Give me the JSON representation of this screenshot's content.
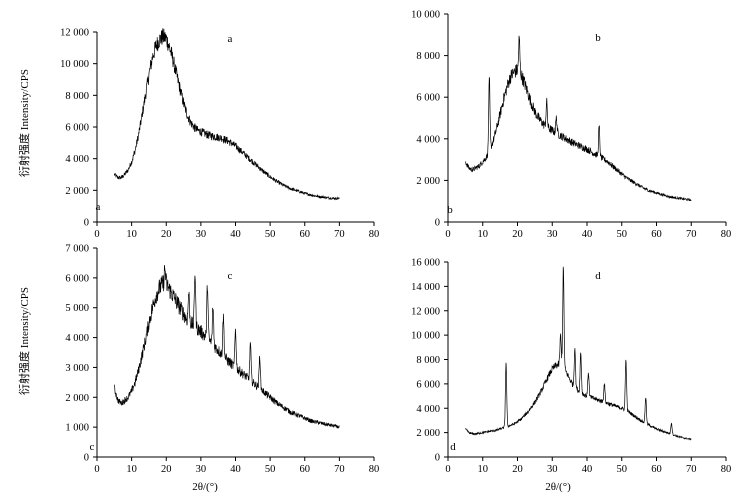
{
  "y_axis_label": "衍射强度 Intensity/CPS",
  "x_axis_label": "2θ/(°)",
  "chart_data": [
    {
      "type": "line",
      "panel_letter": "a",
      "corner_letter": "a",
      "xlim": [
        0,
        80
      ],
      "ylim": [
        0,
        12000
      ],
      "xticks": [
        0,
        10,
        20,
        30,
        40,
        50,
        60,
        70,
        80
      ],
      "xtick_labels": [
        "0",
        "10",
        "20",
        "30",
        "40",
        "50",
        "60",
        "70",
        "80"
      ],
      "yticks": [
        0,
        2000,
        4000,
        6000,
        8000,
        10000,
        12000
      ],
      "ytick_labels": [
        "0",
        "2 000",
        "4 000",
        "6 000",
        "8 000",
        "10 000",
        "12 000"
      ],
      "x": [
        5,
        6,
        7,
        8,
        9,
        10,
        11,
        12,
        13,
        14,
        15,
        16,
        17,
        18,
        19,
        20,
        21,
        22,
        23,
        24,
        25,
        26,
        27,
        28,
        29,
        30,
        32,
        34,
        36,
        38,
        40,
        42,
        44,
        46,
        48,
        50,
        52,
        54,
        56,
        58,
        60,
        62,
        64,
        66,
        68,
        70
      ],
      "y": [
        3000,
        2800,
        2800,
        3000,
        3300,
        3800,
        4500,
        5500,
        6700,
        8000,
        9300,
        10400,
        11100,
        11500,
        11700,
        11600,
        11000,
        10200,
        9300,
        8400,
        7500,
        6800,
        6300,
        6000,
        5800,
        5700,
        5500,
        5400,
        5300,
        5100,
        4800,
        4400,
        4000,
        3600,
        3200,
        2850,
        2550,
        2300,
        2100,
        1950,
        1800,
        1700,
        1600,
        1550,
        1500,
        1480
      ],
      "noise": 0.06
    },
    {
      "type": "line",
      "panel_letter": "b",
      "corner_letter": "b",
      "xlim": [
        0,
        80
      ],
      "ylim": [
        0,
        10000
      ],
      "xticks": [
        0,
        10,
        20,
        30,
        40,
        50,
        60,
        70,
        80
      ],
      "xtick_labels": [
        "0",
        "10",
        "20",
        "30",
        "40",
        "50",
        "60",
        "70",
        "80"
      ],
      "yticks": [
        0,
        2000,
        4000,
        6000,
        8000,
        10000
      ],
      "ytick_labels": [
        "0",
        "2 000",
        "4 000",
        "6 000",
        "8 000",
        "10 000"
      ],
      "x": [
        5,
        6,
        7,
        8,
        9,
        10,
        11,
        12,
        13,
        14,
        15,
        16,
        17,
        18,
        19,
        20,
        21,
        22,
        23,
        24,
        25,
        26,
        27,
        28,
        29,
        30,
        32,
        34,
        36,
        38,
        40,
        42,
        44,
        46,
        48,
        50,
        52,
        54,
        56,
        58,
        60,
        62,
        64,
        66,
        68,
        70
      ],
      "y": [
        2900,
        2600,
        2500,
        2600,
        2700,
        2900,
        3100,
        3400,
        3900,
        4500,
        5200,
        5900,
        6500,
        7000,
        7200,
        7300,
        7100,
        6700,
        6200,
        5700,
        5300,
        5000,
        4800,
        4600,
        4500,
        4400,
        4200,
        4000,
        3800,
        3650,
        3500,
        3300,
        3100,
        2900,
        2600,
        2300,
        2050,
        1850,
        1650,
        1500,
        1400,
        1300,
        1200,
        1150,
        1100,
        1050
      ],
      "peaks": [
        [
          11.9,
          6900
        ],
        [
          20.5,
          8800
        ],
        [
          28.4,
          5800
        ],
        [
          43.5,
          4600
        ],
        [
          31.2,
          5000
        ]
      ],
      "noise": 0.06
    },
    {
      "type": "line",
      "panel_letter": "c",
      "corner_letter": "c",
      "xlim": [
        0,
        80
      ],
      "ylim": [
        0,
        7000
      ],
      "xticks": [
        0,
        10,
        20,
        30,
        40,
        50,
        60,
        70,
        80
      ],
      "xtick_labels": [
        "0",
        "10",
        "20",
        "30",
        "40",
        "50",
        "60",
        "70",
        "80"
      ],
      "yticks": [
        0,
        1000,
        2000,
        3000,
        4000,
        5000,
        6000,
        7000
      ],
      "ytick_labels": [
        "0",
        "1 000",
        "2 000",
        "3 000",
        "4 000",
        "5 000",
        "6 000",
        "7 000"
      ],
      "x": [
        5,
        6,
        7,
        8,
        9,
        10,
        11,
        12,
        13,
        14,
        15,
        16,
        17,
        18,
        19,
        20,
        21,
        22,
        23,
        24,
        25,
        26,
        27,
        28,
        29,
        30,
        32,
        34,
        36,
        38,
        40,
        42,
        44,
        46,
        48,
        50,
        52,
        54,
        56,
        58,
        60,
        62,
        64,
        66,
        68,
        70
      ],
      "y": [
        2300,
        1900,
        1800,
        1900,
        2000,
        2200,
        2500,
        2900,
        3400,
        3900,
        4500,
        5000,
        5400,
        5650,
        5800,
        5800,
        5600,
        5400,
        5200,
        5000,
        4800,
        4600,
        4500,
        4400,
        4300,
        4200,
        3950,
        3700,
        3450,
        3200,
        3000,
        2800,
        2600,
        2400,
        2200,
        2000,
        1800,
        1650,
        1500,
        1400,
        1300,
        1200,
        1150,
        1100,
        1050,
        1000
      ],
      "peaks": [
        [
          19.6,
          6300
        ],
        [
          28.3,
          6200
        ],
        [
          31.9,
          5800
        ],
        [
          26.5,
          5500
        ],
        [
          33.5,
          5000
        ],
        [
          36.5,
          4700
        ],
        [
          40.0,
          4300
        ],
        [
          44.3,
          3800
        ],
        [
          47.0,
          3400
        ]
      ],
      "noise": 0.07
    },
    {
      "type": "line",
      "panel_letter": "d",
      "corner_letter": "d",
      "xlim": [
        0,
        80
      ],
      "ylim": [
        0,
        16000
      ],
      "xticks": [
        0,
        10,
        20,
        30,
        40,
        50,
        60,
        70,
        80
      ],
      "xtick_labels": [
        "0",
        "10",
        "20",
        "30",
        "40",
        "50",
        "60",
        "70",
        "80"
      ],
      "yticks": [
        0,
        2000,
        4000,
        6000,
        8000,
        10000,
        12000,
        14000,
        16000
      ],
      "ytick_labels": [
        "0",
        "2 000",
        "4 000",
        "6 000",
        "8 000",
        "10 000",
        "12 000",
        "14 000",
        "16 000"
      ],
      "x": [
        5,
        6,
        7,
        8,
        9,
        10,
        11,
        12,
        13,
        14,
        15,
        16,
        17,
        18,
        19,
        20,
        21,
        22,
        23,
        24,
        25,
        26,
        27,
        28,
        29,
        30,
        31,
        32,
        33,
        34,
        35,
        36,
        38,
        40,
        42,
        44,
        46,
        48,
        50,
        52,
        54,
        56,
        58,
        60,
        62,
        64,
        66,
        68,
        70
      ],
      "y": [
        2300,
        2000,
        1900,
        1900,
        1950,
        2000,
        2050,
        2100,
        2150,
        2200,
        2300,
        2400,
        2500,
        2600,
        2700,
        2900,
        3100,
        3400,
        3700,
        4100,
        4500,
        5000,
        5500,
        6100,
        6700,
        7200,
        7500,
        7600,
        7500,
        7000,
        6400,
        5900,
        5300,
        5000,
        4800,
        4600,
        4400,
        4200,
        4000,
        3700,
        3300,
        2900,
        2600,
        2300,
        2100,
        1900,
        1700,
        1550,
        1450
      ],
      "peaks": [
        [
          16.7,
          7800
        ],
        [
          33.2,
          15500
        ],
        [
          32.4,
          10000
        ],
        [
          36.5,
          9000
        ],
        [
          38.2,
          8600
        ],
        [
          40.4,
          7000
        ],
        [
          51.2,
          8000
        ],
        [
          56.9,
          4900
        ],
        [
          45.0,
          6000
        ],
        [
          64.3,
          2800
        ]
      ],
      "noise": 0.05
    }
  ]
}
